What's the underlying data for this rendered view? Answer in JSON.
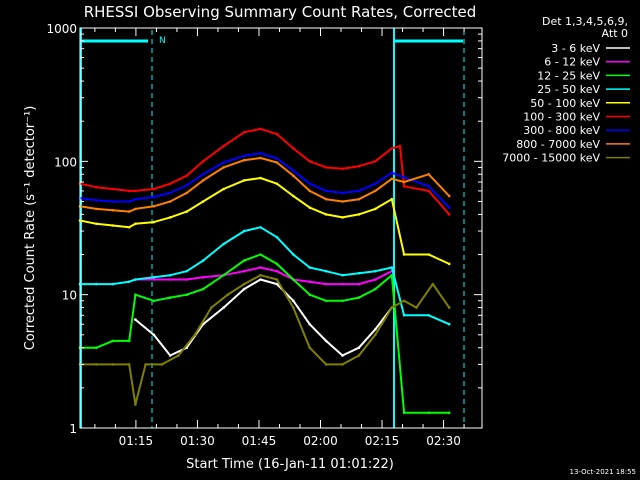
{
  "chart_data": {
    "type": "line",
    "title": "RHESSI Observing Summary Count Rates, Corrected",
    "xlabel": "Start Time (16-Jan-11 01:01:22)",
    "ylabel": "Corrected Count Rate (s⁻¹ detector⁻¹)",
    "x_ticks": [
      "01:15",
      "01:30",
      "01:45",
      "02:00",
      "02:15",
      "02:30"
    ],
    "x_tick_minutes": [
      13.63,
      28.63,
      43.63,
      58.63,
      73.63,
      88.63
    ],
    "xlim_minutes": [
      0,
      98
    ],
    "y_scale": "log",
    "ylim": [
      1,
      1000
    ],
    "y_ticks": [
      "1",
      "10",
      "100",
      "1000"
    ],
    "legend_title": [
      "Det 1,3,4,5,6,9,",
      "Att 0"
    ],
    "legend_position": "right",
    "series": [
      {
        "name": "3 - 6 keV",
        "color": "#ffffff",
        "values": [
          [
            13.5,
            6.5
          ],
          [
            18,
            5
          ],
          [
            22,
            3.5
          ],
          [
            26,
            4
          ],
          [
            30,
            6
          ],
          [
            35,
            8
          ],
          [
            40,
            11
          ],
          [
            44,
            13
          ],
          [
            48,
            12
          ],
          [
            52,
            9
          ],
          [
            56,
            6
          ],
          [
            60,
            4.5
          ],
          [
            64,
            3.5
          ],
          [
            68,
            4
          ],
          [
            72,
            5.5
          ],
          [
            76,
            8
          ]
        ]
      },
      {
        "name": "6 - 12 keV",
        "color": "#ff00ff",
        "values": [
          [
            13.5,
            13
          ],
          [
            18,
            13
          ],
          [
            22,
            13
          ],
          [
            26,
            13
          ],
          [
            30,
            13.5
          ],
          [
            35,
            14
          ],
          [
            40,
            15
          ],
          [
            44,
            16
          ],
          [
            48,
            15
          ],
          [
            52,
            13
          ],
          [
            56,
            12.5
          ],
          [
            60,
            12
          ],
          [
            64,
            12
          ],
          [
            68,
            12
          ],
          [
            72,
            13
          ],
          [
            76,
            15
          ]
        ]
      },
      {
        "name": "12 - 25 keV",
        "color": "#00ff00",
        "values": [
          [
            0,
            4
          ],
          [
            4,
            4
          ],
          [
            8,
            4.5
          ],
          [
            12,
            4.5
          ],
          [
            13.5,
            10
          ],
          [
            18,
            9
          ],
          [
            22,
            9.5
          ],
          [
            26,
            10
          ],
          [
            30,
            11
          ],
          [
            35,
            14
          ],
          [
            40,
            18
          ],
          [
            44,
            20
          ],
          [
            48,
            17
          ],
          [
            52,
            13
          ],
          [
            56,
            10
          ],
          [
            60,
            9
          ],
          [
            64,
            9
          ],
          [
            68,
            9.5
          ],
          [
            72,
            11
          ],
          [
            76,
            14
          ],
          [
            79,
            1.3
          ],
          [
            85,
            1.3
          ],
          [
            90,
            1.3
          ]
        ]
      },
      {
        "name": "25 - 50 keV",
        "color": "#00ffff",
        "values": [
          [
            0,
            12
          ],
          [
            4,
            12
          ],
          [
            8,
            12
          ],
          [
            12,
            12.5
          ],
          [
            13.5,
            13
          ],
          [
            18,
            13.5
          ],
          [
            22,
            14
          ],
          [
            26,
            15
          ],
          [
            30,
            18
          ],
          [
            35,
            24
          ],
          [
            40,
            30
          ],
          [
            44,
            32
          ],
          [
            48,
            27
          ],
          [
            52,
            20
          ],
          [
            56,
            16
          ],
          [
            60,
            15
          ],
          [
            64,
            14
          ],
          [
            68,
            14.5
          ],
          [
            72,
            15
          ],
          [
            76,
            16
          ],
          [
            79,
            7
          ],
          [
            85,
            7
          ],
          [
            90,
            6
          ]
        ]
      },
      {
        "name": "50 - 100 keV",
        "color": "#ffff00",
        "values": [
          [
            0,
            36
          ],
          [
            4,
            34
          ],
          [
            8,
            33
          ],
          [
            12,
            32
          ],
          [
            13.5,
            34
          ],
          [
            18,
            35
          ],
          [
            22,
            38
          ],
          [
            26,
            42
          ],
          [
            30,
            50
          ],
          [
            35,
            62
          ],
          [
            40,
            72
          ],
          [
            44,
            75
          ],
          [
            48,
            68
          ],
          [
            52,
            55
          ],
          [
            56,
            45
          ],
          [
            60,
            40
          ],
          [
            64,
            38
          ],
          [
            68,
            40
          ],
          [
            72,
            44
          ],
          [
            76,
            52
          ],
          [
            79,
            20
          ],
          [
            85,
            20
          ],
          [
            90,
            17
          ]
        ]
      },
      {
        "name": "100 - 300 keV",
        "color": "#ff0000",
        "values": [
          [
            0,
            68
          ],
          [
            4,
            64
          ],
          [
            8,
            62
          ],
          [
            12,
            60
          ],
          [
            13.5,
            60
          ],
          [
            18,
            62
          ],
          [
            22,
            68
          ],
          [
            26,
            78
          ],
          [
            30,
            100
          ],
          [
            35,
            130
          ],
          [
            40,
            165
          ],
          [
            44,
            175
          ],
          [
            48,
            160
          ],
          [
            52,
            125
          ],
          [
            56,
            100
          ],
          [
            60,
            90
          ],
          [
            64,
            88
          ],
          [
            68,
            92
          ],
          [
            72,
            100
          ],
          [
            76,
            125
          ],
          [
            78,
            130
          ],
          [
            79,
            65
          ],
          [
            85,
            60
          ],
          [
            90,
            40
          ]
        ]
      },
      {
        "name": "300 - 800 keV",
        "color": "#0000ff",
        "values": [
          [
            0,
            53
          ],
          [
            4,
            51
          ],
          [
            8,
            50
          ],
          [
            12,
            50
          ],
          [
            13.5,
            52
          ],
          [
            18,
            54
          ],
          [
            22,
            58
          ],
          [
            26,
            66
          ],
          [
            30,
            80
          ],
          [
            35,
            98
          ],
          [
            40,
            110
          ],
          [
            44,
            115
          ],
          [
            48,
            105
          ],
          [
            52,
            85
          ],
          [
            56,
            68
          ],
          [
            60,
            60
          ],
          [
            64,
            58
          ],
          [
            68,
            60
          ],
          [
            72,
            68
          ],
          [
            76,
            82
          ],
          [
            79,
            76
          ],
          [
            85,
            65
          ],
          [
            90,
            45
          ]
        ]
      },
      {
        "name": "800 - 7000 keV",
        "color": "#ff8000",
        "values": [
          [
            0,
            46
          ],
          [
            4,
            44
          ],
          [
            8,
            43
          ],
          [
            12,
            42
          ],
          [
            13.5,
            44
          ],
          [
            18,
            46
          ],
          [
            22,
            50
          ],
          [
            26,
            58
          ],
          [
            30,
            72
          ],
          [
            35,
            90
          ],
          [
            40,
            102
          ],
          [
            44,
            106
          ],
          [
            48,
            98
          ],
          [
            52,
            78
          ],
          [
            56,
            60
          ],
          [
            60,
            52
          ],
          [
            64,
            50
          ],
          [
            68,
            52
          ],
          [
            72,
            60
          ],
          [
            76,
            74
          ],
          [
            79,
            70
          ],
          [
            85,
            80
          ],
          [
            90,
            55
          ]
        ]
      },
      {
        "name": "7000 - 15000 keV",
        "color": "#808000",
        "values": [
          [
            0,
            3
          ],
          [
            4,
            3
          ],
          [
            8,
            3
          ],
          [
            12,
            3
          ],
          [
            13.5,
            1.5
          ],
          [
            16,
            3
          ],
          [
            20,
            3
          ],
          [
            24,
            3.5
          ],
          [
            28,
            5
          ],
          [
            32,
            8
          ],
          [
            36,
            10
          ],
          [
            40,
            12
          ],
          [
            44,
            14
          ],
          [
            48,
            13
          ],
          [
            52,
            8
          ],
          [
            56,
            4
          ],
          [
            60,
            3
          ],
          [
            64,
            3
          ],
          [
            68,
            3.5
          ],
          [
            72,
            5
          ],
          [
            76,
            8
          ],
          [
            79,
            9
          ],
          [
            82,
            8
          ],
          [
            86,
            12
          ],
          [
            90,
            8
          ]
        ]
      }
    ],
    "annotations": {
      "marker_label": "N"
    }
  },
  "timestamp": "13-Oct-2021 18:55"
}
